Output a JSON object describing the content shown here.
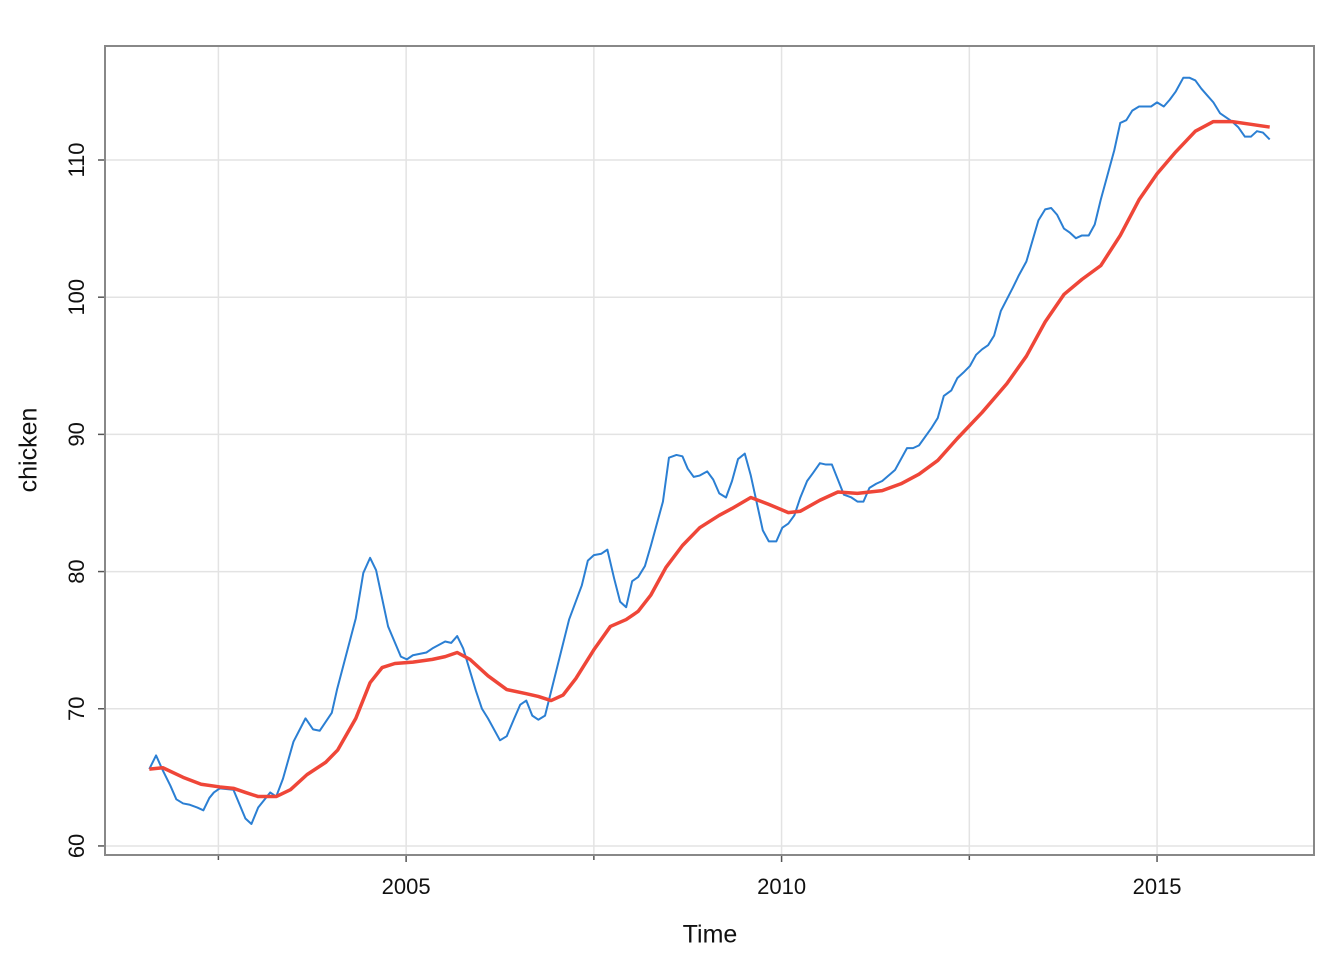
{
  "chart_data": {
    "type": "line",
    "xlabel": "Time",
    "ylabel": "chicken",
    "xlim": [
      2000.99,
      2017.09
    ],
    "ylim": [
      59.34,
      118.31
    ],
    "xticks": [
      2005,
      2010,
      2015
    ],
    "xminor": [
      2002.5,
      2007.5,
      2012.5
    ],
    "yticks": [
      60,
      70,
      80,
      90,
      100,
      110
    ],
    "grid": true,
    "series": [
      {
        "color": "#2b7fd3",
        "width": 2,
        "x": [
          2001.58,
          2001.67,
          2001.76,
          2001.86,
          2001.94,
          2002.03,
          2002.12,
          2002.22,
          2002.3,
          2002.38,
          2002.44,
          2002.52,
          2002.7,
          2002.86,
          2002.94,
          2003.03,
          2003.19,
          2003.27,
          2003.36,
          2003.5,
          2003.66,
          2003.76,
          2003.85,
          2004.01,
          2004.08,
          2004.33,
          2004.43,
          2004.52,
          2004.6,
          2004.76,
          2004.93,
          2005.01,
          2005.09,
          2005.27,
          2005.35,
          2005.52,
          2005.6,
          2005.68,
          2005.76,
          2005.93,
          2006.01,
          2006.09,
          2006.25,
          2006.34,
          2006.44,
          2006.52,
          2006.6,
          2006.68,
          2006.76,
          2006.85,
          2007.01,
          2007.17,
          2007.34,
          2007.42,
          2007.5,
          2007.6,
          2007.68,
          2007.77,
          2007.85,
          2007.93,
          2008.01,
          2008.09,
          2008.18,
          2008.26,
          2008.42,
          2008.5,
          2008.6,
          2008.68,
          2008.75,
          2008.83,
          2008.91,
          2009.01,
          2009.09,
          2009.17,
          2009.26,
          2009.34,
          2009.42,
          2009.51,
          2009.59,
          2009.75,
          2009.83,
          2009.93,
          2010.01,
          2010.09,
          2010.17,
          2010.25,
          2010.34,
          2010.42,
          2010.51,
          2010.59,
          2010.67,
          2010.83,
          2010.93,
          2011.01,
          2011.09,
          2011.17,
          2011.26,
          2011.34,
          2011.51,
          2011.67,
          2011.75,
          2011.83,
          2012.0,
          2012.08,
          2012.16,
          2012.26,
          2012.34,
          2012.42,
          2012.51,
          2012.59,
          2012.67,
          2012.75,
          2012.83,
          2012.92,
          2013.08,
          2013.16,
          2013.26,
          2013.42,
          2013.51,
          2013.59,
          2013.67,
          2013.76,
          2013.84,
          2013.92,
          2014.0,
          2014.09,
          2014.17,
          2014.25,
          2014.33,
          2014.43,
          2014.51,
          2014.59,
          2014.67,
          2014.76,
          2014.84,
          2014.92,
          2015.0,
          2015.09,
          2015.17,
          2015.25,
          2015.35,
          2015.43,
          2015.51,
          2015.59,
          2015.67,
          2015.75,
          2015.84,
          2015.92,
          2016.0,
          2016.08,
          2016.17,
          2016.25,
          2016.33,
          2016.41,
          2016.5
        ],
        "values": [
          65.6,
          66.6,
          65.5,
          64.4,
          63.4,
          63.1,
          63.0,
          62.8,
          62.6,
          63.5,
          63.9,
          64.2,
          64.1,
          62.0,
          61.6,
          62.8,
          63.9,
          63.6,
          64.9,
          67.6,
          69.3,
          68.5,
          68.4,
          69.7,
          71.4,
          76.6,
          79.9,
          81.0,
          80.1,
          76.0,
          73.8,
          73.6,
          73.9,
          74.1,
          74.4,
          74.9,
          74.8,
          75.3,
          74.4,
          71.3,
          70.0,
          69.3,
          67.7,
          68.0,
          69.3,
          70.3,
          70.6,
          69.5,
          69.2,
          69.5,
          73.0,
          76.5,
          79.0,
          80.8,
          81.2,
          81.3,
          81.6,
          79.5,
          77.8,
          77.4,
          79.3,
          79.6,
          80.4,
          81.9,
          85.1,
          88.3,
          88.5,
          88.4,
          87.5,
          86.9,
          87.0,
          87.3,
          86.7,
          85.7,
          85.4,
          86.6,
          88.2,
          88.6,
          87.0,
          83.0,
          82.2,
          82.2,
          83.2,
          83.5,
          84.1,
          85.4,
          86.6,
          87.2,
          87.9,
          87.8,
          87.8,
          85.6,
          85.4,
          85.1,
          85.1,
          86.1,
          86.4,
          86.6,
          87.4,
          89.0,
          89.0,
          89.2,
          90.5,
          91.2,
          92.8,
          93.2,
          94.1,
          94.5,
          95.0,
          95.8,
          96.2,
          96.5,
          97.2,
          99.0,
          100.7,
          101.6,
          102.6,
          105.6,
          106.4,
          106.5,
          106.0,
          105.0,
          104.7,
          104.3,
          104.5,
          104.5,
          105.3,
          107.1,
          108.7,
          110.7,
          112.7,
          112.9,
          113.6,
          113.9,
          113.9,
          113.9,
          114.2,
          113.9,
          114.4,
          115.0,
          116.0,
          116.0,
          115.8,
          115.2,
          114.7,
          114.2,
          113.4,
          113.1,
          112.8,
          112.4,
          111.7,
          111.7,
          112.1,
          112.0,
          111.5
        ]
      },
      {
        "color": "#ef4638",
        "width": 3.5,
        "x": [
          2001.58,
          2001.76,
          2002.03,
          2002.27,
          2002.52,
          2002.7,
          2002.86,
          2003.03,
          2003.27,
          2003.46,
          2003.68,
          2003.93,
          2004.09,
          2004.33,
          2004.52,
          2004.68,
          2004.85,
          2005.09,
          2005.35,
          2005.52,
          2005.68,
          2005.85,
          2006.09,
          2006.34,
          2006.6,
          2006.76,
          2006.93,
          2007.09,
          2007.26,
          2007.5,
          2007.72,
          2007.93,
          2008.09,
          2008.26,
          2008.46,
          2008.68,
          2008.91,
          2009.17,
          2009.34,
          2009.59,
          2009.83,
          2010.09,
          2010.25,
          2010.51,
          2010.75,
          2011.01,
          2011.34,
          2011.59,
          2011.83,
          2012.08,
          2012.34,
          2012.67,
          2013.0,
          2013.26,
          2013.51,
          2013.76,
          2014.0,
          2014.25,
          2014.51,
          2014.76,
          2015.0,
          2015.25,
          2015.51,
          2015.75,
          2016.0,
          2016.25,
          2016.5
        ],
        "values": [
          65.6,
          65.7,
          65.0,
          64.5,
          64.3,
          64.2,
          63.9,
          63.6,
          63.6,
          64.1,
          65.2,
          66.1,
          67.0,
          69.3,
          71.9,
          73.0,
          73.3,
          73.4,
          73.6,
          73.8,
          74.1,
          73.6,
          72.4,
          71.4,
          71.1,
          70.9,
          70.6,
          71.0,
          72.2,
          74.3,
          76.0,
          76.5,
          77.1,
          78.3,
          80.3,
          81.9,
          83.2,
          84.1,
          84.6,
          85.4,
          84.9,
          84.3,
          84.4,
          85.2,
          85.8,
          85.7,
          85.9,
          86.4,
          87.1,
          88.1,
          89.7,
          91.6,
          93.7,
          95.7,
          98.2,
          100.2,
          101.3,
          102.3,
          104.5,
          107.1,
          109.0,
          110.6,
          112.1,
          112.8,
          112.8,
          112.6,
          112.4
        ]
      }
    ]
  }
}
